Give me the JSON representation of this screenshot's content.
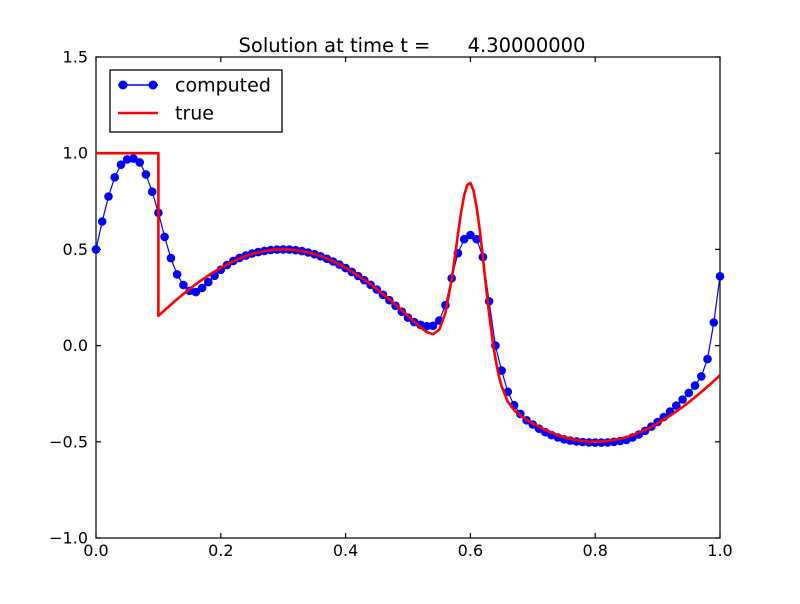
{
  "figure": {
    "background": "#ffffff",
    "axes_border_color": "#000000"
  },
  "chart_data": {
    "type": "line",
    "title": "Solution at time t =      4.30000000",
    "xlabel": "",
    "ylabel": "",
    "xlim": [
      0.0,
      1.0
    ],
    "ylim": [
      -1.0,
      1.5
    ],
    "grid": false,
    "xticks": {
      "values": [
        0.0,
        0.2,
        0.4,
        0.6,
        0.8,
        1.0
      ],
      "labels": [
        "0.0",
        "0.2",
        "0.4",
        "0.6",
        "0.8",
        "1.0"
      ]
    },
    "yticks": {
      "values": [
        1.5,
        1.0,
        0.5,
        0.0,
        -0.5,
        -1.0
      ],
      "labels": [
        "1.5",
        "1.0",
        "0.5",
        "0.0",
        "−0.5",
        "−1.0"
      ]
    },
    "legend": {
      "position": "upper left"
    },
    "series": [
      {
        "name": "computed",
        "color": "#0000ff",
        "marker": "circle",
        "line_style": "solid",
        "x_start": 0.0,
        "x_step": 0.01,
        "y": [
          0.5,
          0.645,
          0.775,
          0.875,
          0.94,
          0.968,
          0.972,
          0.952,
          0.89,
          0.8,
          0.69,
          0.565,
          0.455,
          0.37,
          0.315,
          0.285,
          0.278,
          0.3,
          0.33,
          0.363,
          0.394,
          0.419,
          0.44,
          0.456,
          0.468,
          0.478,
          0.486,
          0.492,
          0.497,
          0.499,
          0.5,
          0.499,
          0.496,
          0.491,
          0.484,
          0.475,
          0.464,
          0.451,
          0.437,
          0.421,
          0.403,
          0.383,
          0.362,
          0.34,
          0.316,
          0.291,
          0.264,
          0.236,
          0.207,
          0.176,
          0.145,
          0.122,
          0.108,
          0.101,
          0.103,
          0.13,
          0.21,
          0.35,
          0.48,
          0.553,
          0.575,
          0.553,
          0.46,
          0.23,
          0.0,
          -0.13,
          -0.24,
          -0.31,
          -0.355,
          -0.388,
          -0.41,
          -0.432,
          -0.45,
          -0.465,
          -0.477,
          -0.487,
          -0.494,
          -0.498,
          -0.501,
          -0.503,
          -0.504,
          -0.504,
          -0.503,
          -0.5,
          -0.496,
          -0.49,
          -0.477,
          -0.462,
          -0.443,
          -0.421,
          -0.397,
          -0.371,
          -0.343,
          -0.312,
          -0.28,
          -0.246,
          -0.208,
          -0.16,
          -0.07,
          0.12,
          0.36
        ]
      },
      {
        "name": "true",
        "color": "#ff0000",
        "marker": "none",
        "line_style": "solid",
        "points": [
          [
            0,
            1
          ],
          [
            0.1,
            1
          ],
          [
            0.1,
            0.155
          ],
          [
            0.11,
            0.184
          ],
          [
            0.12,
            0.213
          ],
          [
            0.13,
            0.241
          ],
          [
            0.14,
            0.268
          ],
          [
            0.15,
            0.294
          ],
          [
            0.16,
            0.319
          ],
          [
            0.17,
            0.342
          ],
          [
            0.18,
            0.364
          ],
          [
            0.19,
            0.385
          ],
          [
            0.2,
            0.404
          ],
          [
            0.21,
            0.422
          ],
          [
            0.22,
            0.438
          ],
          [
            0.23,
            0.452
          ],
          [
            0.24,
            0.465
          ],
          [
            0.25,
            0.476
          ],
          [
            0.26,
            0.484
          ],
          [
            0.27,
            0.491
          ],
          [
            0.28,
            0.496
          ],
          [
            0.29,
            0.499
          ],
          [
            0.3,
            0.5
          ],
          [
            0.31,
            0.499
          ],
          [
            0.32,
            0.496
          ],
          [
            0.33,
            0.491
          ],
          [
            0.34,
            0.484
          ],
          [
            0.35,
            0.476
          ],
          [
            0.36,
            0.465
          ],
          [
            0.37,
            0.452
          ],
          [
            0.38,
            0.438
          ],
          [
            0.39,
            0.422
          ],
          [
            0.4,
            0.404
          ],
          [
            0.41,
            0.385
          ],
          [
            0.42,
            0.364
          ],
          [
            0.43,
            0.342
          ],
          [
            0.44,
            0.319
          ],
          [
            0.45,
            0.294
          ],
          [
            0.46,
            0.268
          ],
          [
            0.47,
            0.241
          ],
          [
            0.48,
            0.213
          ],
          [
            0.49,
            0.184
          ],
          [
            0.5,
            0.155
          ],
          [
            0.51,
            0.125
          ],
          [
            0.52,
            0.095
          ],
          [
            0.53,
            0.07
          ],
          [
            0.54,
            0.059
          ],
          [
            0.55,
            0.082
          ],
          [
            0.56,
            0.17
          ],
          [
            0.57,
            0.344
          ],
          [
            0.575,
            0.457
          ],
          [
            0.58,
            0.577
          ],
          [
            0.585,
            0.69
          ],
          [
            0.59,
            0.781
          ],
          [
            0.595,
            0.836
          ],
          [
            0.6,
            0.845
          ],
          [
            0.605,
            0.806
          ],
          [
            0.61,
            0.721
          ],
          [
            0.615,
            0.6
          ],
          [
            0.62,
            0.457
          ],
          [
            0.625,
            0.308
          ],
          [
            0.63,
            0.166
          ],
          [
            0.635,
            0.04
          ],
          [
            0.64,
            -0.066
          ],
          [
            0.645,
            -0.149
          ],
          [
            0.65,
            -0.212
          ],
          [
            0.66,
            -0.292
          ],
          [
            0.67,
            -0.335
          ],
          [
            0.68,
            -0.363
          ],
          [
            0.69,
            -0.385
          ],
          [
            0.7,
            -0.404
          ],
          [
            0.71,
            -0.422
          ],
          [
            0.72,
            -0.438
          ],
          [
            0.73,
            -0.452
          ],
          [
            0.74,
            -0.465
          ],
          [
            0.75,
            -0.476
          ],
          [
            0.76,
            -0.484
          ],
          [
            0.77,
            -0.491
          ],
          [
            0.78,
            -0.496
          ],
          [
            0.79,
            -0.499
          ],
          [
            0.8,
            -0.5
          ],
          [
            0.81,
            -0.499
          ],
          [
            0.82,
            -0.496
          ],
          [
            0.83,
            -0.491
          ],
          [
            0.84,
            -0.484
          ],
          [
            0.85,
            -0.476
          ],
          [
            0.86,
            -0.465
          ],
          [
            0.87,
            -0.452
          ],
          [
            0.88,
            -0.438
          ],
          [
            0.89,
            -0.422
          ],
          [
            0.9,
            -0.404
          ],
          [
            0.91,
            -0.385
          ],
          [
            0.92,
            -0.364
          ],
          [
            0.93,
            -0.342
          ],
          [
            0.94,
            -0.319
          ],
          [
            0.95,
            -0.294
          ],
          [
            0.96,
            -0.268
          ],
          [
            0.97,
            -0.241
          ],
          [
            0.98,
            -0.213
          ],
          [
            0.99,
            -0.184
          ],
          [
            1,
            -0.155
          ]
        ]
      }
    ]
  }
}
